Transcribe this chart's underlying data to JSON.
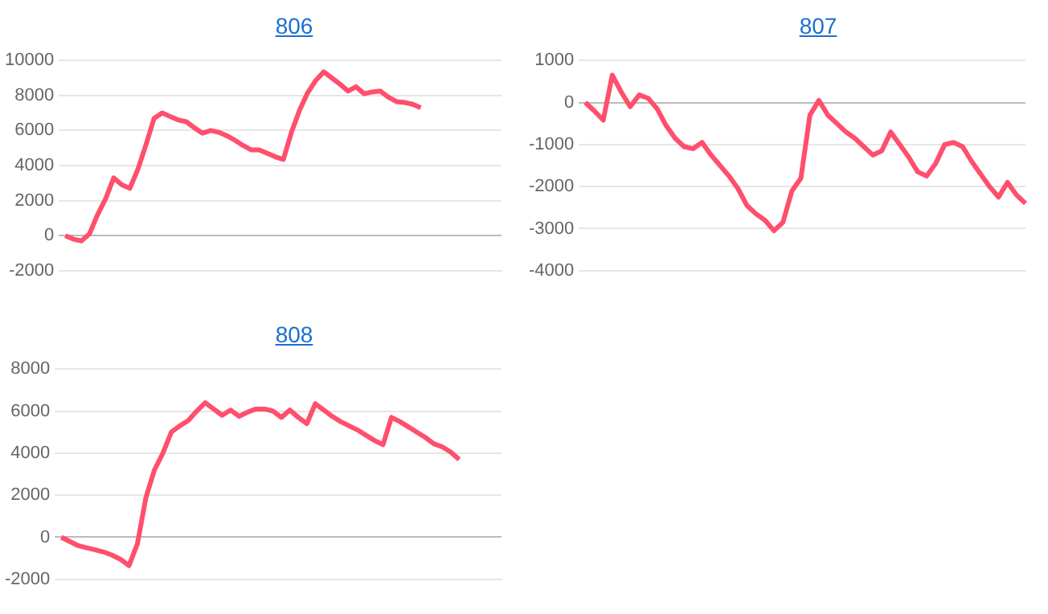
{
  "chart_data": [
    {
      "type": "line",
      "title": "806",
      "categories": [
        null,
        null,
        null,
        null,
        null,
        null,
        null,
        null,
        null,
        null,
        null,
        null,
        null,
        null,
        null,
        null,
        null,
        null,
        null,
        null,
        null,
        null,
        null,
        null,
        null,
        null,
        null,
        null,
        null,
        null,
        null,
        null,
        null,
        null,
        null,
        null,
        null,
        null,
        null,
        null,
        null,
        null,
        null,
        null,
        null,
        null,
        null,
        null,
        null,
        null,
        null,
        null,
        null,
        null,
        null
      ],
      "values": [
        0,
        -200,
        -300,
        100,
        1200,
        2100,
        3300,
        2900,
        2700,
        3800,
        5200,
        6700,
        7000,
        6800,
        6600,
        6500,
        6150,
        5850,
        6000,
        5900,
        5700,
        5450,
        5150,
        4900,
        4900,
        4700,
        4500,
        4350,
        5900,
        7150,
        8150,
        8850,
        9350,
        9000,
        8650,
        8250,
        8500,
        8100,
        8200,
        8250,
        7900,
        7650,
        7600,
        7500,
        7300,
        null,
        null,
        null,
        null,
        null,
        null,
        null,
        null,
        null,
        null
      ],
      "color": "#ff4f6d",
      "ylim": [
        -2000,
        10000
      ],
      "yticks": [
        -2000,
        0,
        2000,
        4000,
        6000,
        8000,
        10000
      ],
      "grid": "y",
      "tick_labels": "y",
      "marker": "none",
      "line_style": "solid"
    },
    {
      "type": "line",
      "title": "807",
      "categories": [
        null,
        null,
        null,
        null,
        null,
        null,
        null,
        null,
        null,
        null,
        null,
        null,
        null,
        null,
        null,
        null,
        null,
        null,
        null,
        null,
        null,
        null,
        null,
        null,
        null,
        null,
        null,
        null,
        null,
        null,
        null,
        null,
        null,
        null,
        null,
        null,
        null,
        null,
        null,
        null,
        null,
        null,
        null,
        null,
        null,
        null,
        null,
        null,
        null,
        null
      ],
      "values": [
        0,
        -200,
        -420,
        650,
        250,
        -100,
        180,
        100,
        -150,
        -550,
        -850,
        -1050,
        -1100,
        -950,
        -1250,
        -1500,
        -1750,
        -2050,
        -2450,
        -2650,
        -2800,
        -3050,
        -2850,
        -2100,
        -1800,
        -300,
        50,
        -300,
        -500,
        -700,
        -850,
        -1050,
        -1250,
        -1150,
        -700,
        -1000,
        -1300,
        -1650,
        -1750,
        -1450,
        -1000,
        -950,
        -1050,
        -1400,
        -1700,
        -2000,
        -2250,
        -1900,
        -2200,
        -2400
      ],
      "color": "#ff4f6d",
      "ylim": [
        -4000,
        1000
      ],
      "yticks": [
        -4000,
        -3000,
        -2000,
        -1000,
        0,
        1000
      ],
      "grid": "y",
      "tick_labels": "y",
      "marker": "none",
      "line_style": "solid"
    },
    {
      "type": "line",
      "title": "808",
      "categories": [
        null,
        null,
        null,
        null,
        null,
        null,
        null,
        null,
        null,
        null,
        null,
        null,
        null,
        null,
        null,
        null,
        null,
        null,
        null,
        null,
        null,
        null,
        null,
        null,
        null,
        null,
        null,
        null,
        null,
        null,
        null,
        null,
        null,
        null,
        null,
        null,
        null,
        null,
        null,
        null,
        null,
        null,
        null,
        null,
        null,
        null,
        null,
        null,
        null,
        null,
        null,
        null,
        null
      ],
      "values": [
        0,
        -200,
        -400,
        -500,
        -600,
        -700,
        -850,
        -1050,
        -1350,
        -300,
        1900,
        3200,
        4000,
        5000,
        5300,
        5550,
        6000,
        6400,
        6100,
        5800,
        6050,
        5750,
        5950,
        6100,
        6100,
        6000,
        5700,
        6050,
        5700,
        5400,
        6350,
        6050,
        5750,
        5500,
        5300,
        5100,
        4850,
        4600,
        4400,
        5700,
        5500,
        5250,
        5000,
        4750,
        4450,
        4300,
        4050,
        3700,
        null,
        null,
        null,
        null,
        null
      ],
      "color": "#ff4f6d",
      "ylim": [
        -2000,
        8000
      ],
      "yticks": [
        -2000,
        0,
        2000,
        4000,
        6000,
        8000
      ],
      "grid": "y",
      "tick_labels": "y",
      "marker": "none",
      "line_style": "solid"
    }
  ]
}
